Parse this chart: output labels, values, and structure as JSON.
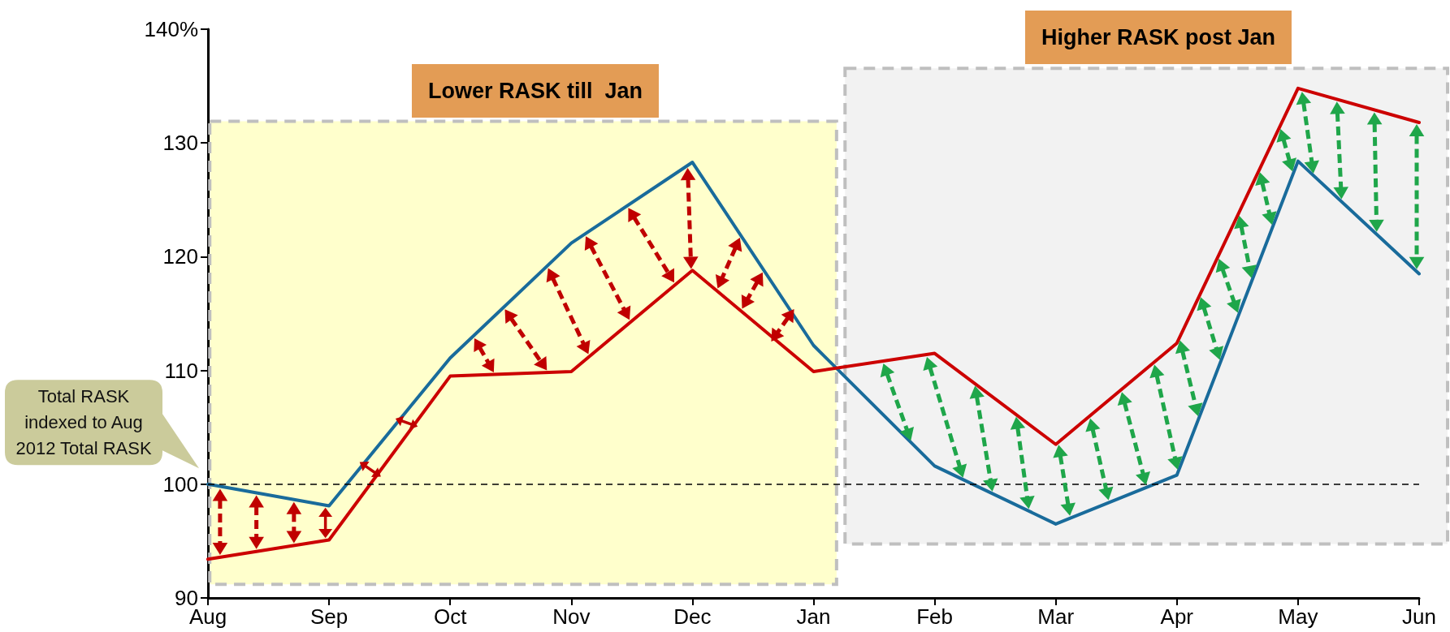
{
  "chart_data": {
    "type": "line",
    "categories": [
      "Aug",
      "Sep",
      "Oct",
      "Nov",
      "Dec",
      "Jan",
      "Feb",
      "Mar",
      "Apr",
      "May",
      "Jun"
    ],
    "series": [
      {
        "color": "#196b9b",
        "values": [
          100,
          98.1,
          111.1,
          121.2,
          128.3,
          112.2,
          101.6,
          96.5,
          100.8,
          128.4,
          118.5
        ]
      },
      {
        "color": "#cc0000",
        "values": [
          93.4,
          95.1,
          109.5,
          109.9,
          118.8,
          109.9,
          111.5,
          103.5,
          112.4,
          134.8,
          131.8
        ]
      }
    ],
    "ylim": [
      90,
      140
    ],
    "yticks": [
      90,
      100,
      110,
      120,
      130,
      {
        "value": 140,
        "label": "140%"
      }
    ],
    "ref_lines": [
      {
        "axis": "y",
        "value": 100,
        "color": "#000000",
        "line_style": "dashed"
      }
    ],
    "bands": [
      {
        "axis": "x",
        "from": "Aug",
        "to": "Jan",
        "label": "Lower RASK till  Jan",
        "color": "#ffffcc"
      },
      {
        "axis": "x",
        "from": "Jan",
        "to": "Jun",
        "label": "Higher RASK post Jan",
        "color": "#f2f2f2"
      }
    ],
    "annotations": [
      "Total RASK indexed to Aug 2012 Total RASK"
    ],
    "marker": "none",
    "line_style": "solid"
  }
}
